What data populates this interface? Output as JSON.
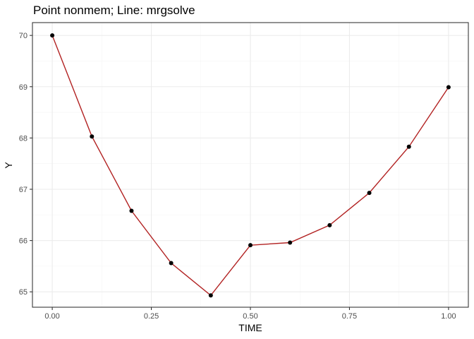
{
  "chart_data": {
    "type": "line",
    "title": "Point nonmem; Line: mrgsolve",
    "xlabel": "TIME",
    "ylabel": "Y",
    "xlim": [
      -0.05,
      1.05
    ],
    "ylim": [
      64.7,
      70.25
    ],
    "x_ticks": [
      0,
      0.25,
      0.5,
      0.75,
      1
    ],
    "x_tick_labels": [
      "0.00",
      "0.25",
      "0.50",
      "0.75",
      "1.00"
    ],
    "x_minor_ticks": [
      0.125,
      0.375,
      0.625,
      0.875
    ],
    "y_ticks": [
      65,
      66,
      67,
      68,
      69,
      70
    ],
    "y_tick_labels": [
      "65",
      "66",
      "67",
      "68",
      "69",
      "70"
    ],
    "y_minor_ticks": [
      65.5,
      66.5,
      67.5,
      68.5,
      69.5
    ],
    "grid": true,
    "legend": "none",
    "series": [
      {
        "kind": "line",
        "color": "#b22222",
        "x": [
          0,
          0.1,
          0.2,
          0.3,
          0.4,
          0.5,
          0.6,
          0.7,
          0.8,
          0.9,
          1.0
        ],
        "y": [
          70.0,
          68.03,
          66.58,
          65.56,
          64.93,
          65.91,
          65.96,
          66.3,
          66.93,
          67.83,
          68.99
        ]
      },
      {
        "kind": "points",
        "color": "#000000",
        "x": [
          0,
          0.1,
          0.2,
          0.3,
          0.4,
          0.5,
          0.6,
          0.7,
          0.8,
          0.9,
          1.0
        ],
        "y": [
          70.0,
          68.03,
          66.58,
          65.56,
          64.93,
          65.91,
          65.96,
          66.3,
          66.93,
          67.83,
          68.99
        ]
      }
    ]
  }
}
